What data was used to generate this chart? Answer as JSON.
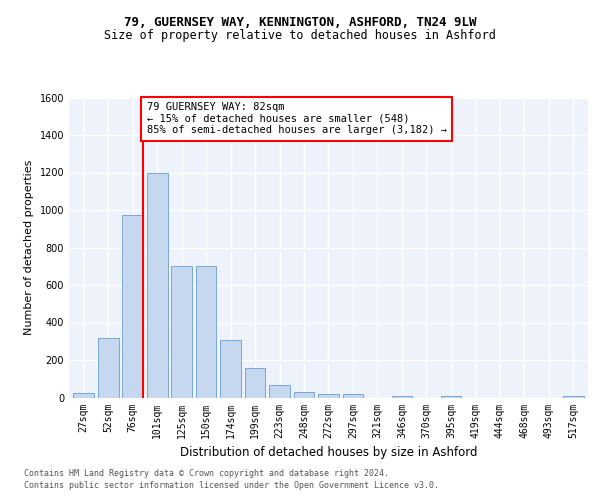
{
  "title1": "79, GUERNSEY WAY, KENNINGTON, ASHFORD, TN24 9LW",
  "title2": "Size of property relative to detached houses in Ashford",
  "xlabel": "Distribution of detached houses by size in Ashford",
  "ylabel": "Number of detached properties",
  "categories": [
    "27sqm",
    "52sqm",
    "76sqm",
    "101sqm",
    "125sqm",
    "150sqm",
    "174sqm",
    "199sqm",
    "223sqm",
    "248sqm",
    "272sqm",
    "297sqm",
    "321sqm",
    "346sqm",
    "370sqm",
    "395sqm",
    "419sqm",
    "444sqm",
    "468sqm",
    "493sqm",
    "517sqm"
  ],
  "values": [
    25,
    320,
    975,
    1195,
    700,
    700,
    305,
    155,
    65,
    30,
    20,
    20,
    0,
    10,
    0,
    10,
    0,
    0,
    0,
    0,
    10
  ],
  "bar_color": "#c5d8f0",
  "bar_edge_color": "#7aa8d4",
  "redline_x": 2.42,
  "annotation_text": "79 GUERNSEY WAY: 82sqm\n← 15% of detached houses are smaller (548)\n85% of semi-detached houses are larger (3,182) →",
  "annotation_box_color": "white",
  "annotation_box_edge_color": "red",
  "footer1": "Contains HM Land Registry data © Crown copyright and database right 2024.",
  "footer2": "Contains public sector information licensed under the Open Government Licence v3.0.",
  "ylim": [
    0,
    1600
  ],
  "yticks": [
    0,
    200,
    400,
    600,
    800,
    1000,
    1200,
    1400,
    1600
  ],
  "bg_color": "#eef2fa",
  "fig_bg_color": "white",
  "grid_color": "white",
  "title1_fontsize": 9,
  "title2_fontsize": 8.5,
  "ylabel_fontsize": 8,
  "xlabel_fontsize": 8.5,
  "tick_fontsize": 7,
  "footer_fontsize": 6,
  "annot_fontsize": 7.5
}
